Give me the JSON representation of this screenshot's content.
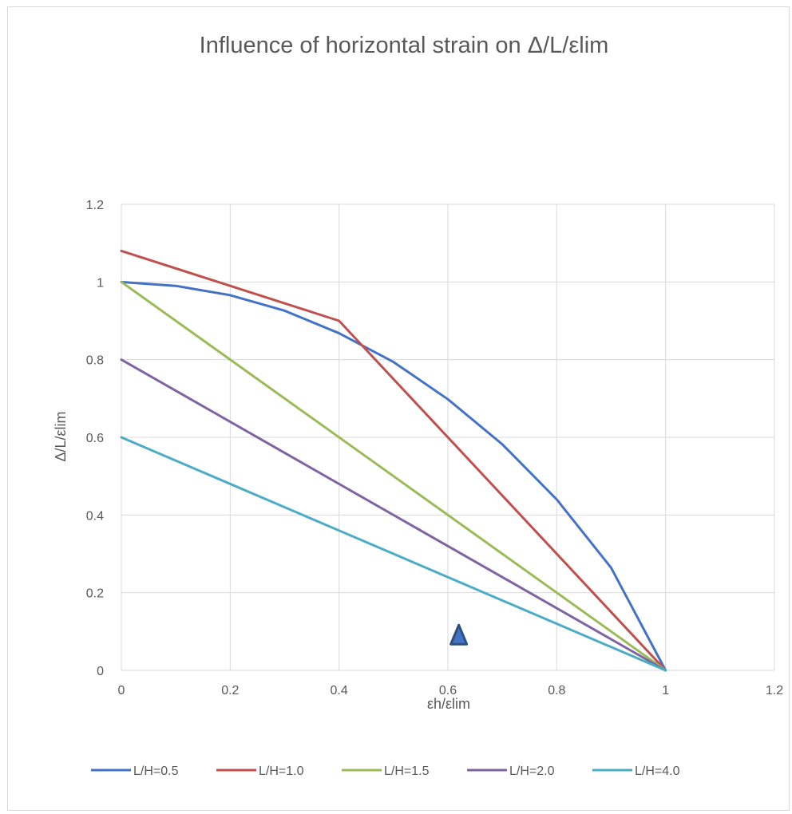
{
  "chart_data": {
    "type": "line",
    "title": "Influence of horizontal strain on Δ/L/εlim",
    "xlabel": "εh/εlim",
    "ylabel": "Δ/L/εlim",
    "xlim": [
      0,
      1.2
    ],
    "ylim": [
      0,
      1.2
    ],
    "x_ticks": [
      "0",
      "0.2",
      "0.4",
      "0.6",
      "0.8",
      "1",
      "1.2"
    ],
    "y_ticks": [
      "0",
      "0.2",
      "0.4",
      "0.6",
      "0.8",
      "1",
      "1.2"
    ],
    "grid": true,
    "legend_position": "bottom",
    "series": [
      {
        "name": "L/H=0.5",
        "color": "#4472C4",
        "x": [
          0,
          0.1,
          0.2,
          0.3,
          0.4,
          0.5,
          0.6,
          0.7,
          0.8,
          0.9,
          1.0
        ],
        "y": [
          1.0,
          0.99,
          0.966,
          0.926,
          0.868,
          0.794,
          0.698,
          0.582,
          0.44,
          0.264,
          0
        ]
      },
      {
        "name": "L/H=1.0",
        "color": "#C0504D",
        "x": [
          0,
          0.2,
          0.4,
          1.0
        ],
        "y": [
          1.08,
          0.99,
          0.9,
          0
        ]
      },
      {
        "name": "L/H=1.5",
        "color": "#9BBB59",
        "x": [
          0,
          1.0
        ],
        "y": [
          1.0,
          0
        ]
      },
      {
        "name": "L/H=2.0",
        "color": "#8064A2",
        "x": [
          0,
          1.0
        ],
        "y": [
          0.8,
          0
        ]
      },
      {
        "name": "L/H=4.0",
        "color": "#4BACC6",
        "x": [
          0,
          1.0
        ],
        "y": [
          0.6,
          0
        ]
      }
    ],
    "annotations": [
      {
        "shape": "triangle",
        "x": 0.62,
        "y": 0.09,
        "color": "#2F4F7F"
      }
    ]
  }
}
